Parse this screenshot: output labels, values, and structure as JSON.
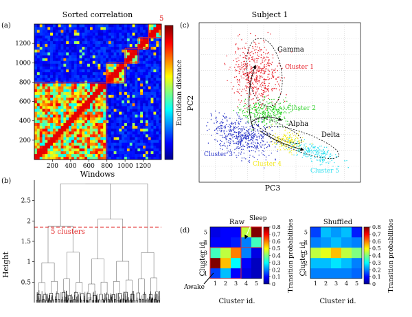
{
  "panel_a": {
    "label": "(a)",
    "title": "Sorted correlation",
    "xlabel": "Windows",
    "colorbar_label": "Euclidean distance",
    "cluster_marker": "5"
  },
  "panel_b": {
    "label": "(b)",
    "ylabel": "Height",
    "threshold_label": "5 clusters"
  },
  "panel_c": {
    "label": "(c)",
    "title": "Subject 1",
    "xlabel": "PC3",
    "ylabel": "PC2",
    "annotations": [
      "Gamma",
      "Alpha",
      "Delta"
    ]
  },
  "panel_d": {
    "label": "(d)",
    "raw_title": "Raw",
    "shuffled_title": "Shuffled",
    "xlabel": "Cluster id.",
    "ylabel": "Cluster id.",
    "colorbar_label": "Transition probabilities",
    "sleep_label": "Sleep",
    "awake_label": "Awake"
  },
  "colors": {
    "cluster1": "#e8202a",
    "cluster2": "#2fd12a",
    "cluster3": "#2a36c8",
    "cluster4": "#f2e81c",
    "cluster5": "#33e0f0",
    "threshold": "#e32a2a"
  },
  "chart_data": [
    {
      "type": "heatmap",
      "panel": "a",
      "title": "Sorted correlation",
      "xlabel": "Windows",
      "ylabel": "",
      "xlim": [
        0,
        1400
      ],
      "ylim": [
        0,
        1400
      ],
      "xticks": [
        200,
        400,
        600,
        800,
        1000,
        1200
      ],
      "yticks": [
        200,
        400,
        600,
        800,
        1000,
        1200
      ],
      "cluster_blocks": [
        [
          0,
          800
        ],
        [
          800,
          1000
        ],
        [
          1000,
          1150
        ],
        [
          1150,
          1260
        ],
        [
          1260,
          1400
        ]
      ],
      "colorbar_label": "Euclidean distance"
    },
    {
      "type": "dendrogram",
      "panel": "b",
      "ylabel": "Height",
      "yticks": [
        0.5,
        1.0,
        1.5,
        2.0,
        2.5
      ],
      "ytick_labels": [
        "0.5",
        "1",
        "1.5",
        "2",
        "2.5"
      ],
      "ylim": [
        0,
        3.0
      ],
      "threshold": 1.85,
      "threshold_label": "5 clusters"
    },
    {
      "type": "scatter",
      "panel": "c",
      "title": "Subject 1",
      "xlabel": "PC3",
      "ylabel": "PC2",
      "series": [
        {
          "name": "Cluster 1",
          "color": "#e8202a"
        },
        {
          "name": "Cluster 2",
          "color": "#2fd12a"
        },
        {
          "name": "Cluster 3",
          "color": "#2a36c8"
        },
        {
          "name": "Cluster 4",
          "color": "#f2e81c"
        },
        {
          "name": "Cluster 5",
          "color": "#33e0f0"
        }
      ],
      "annotations": [
        "Gamma",
        "Alpha",
        "Delta"
      ]
    },
    {
      "type": "heatmap",
      "panel": "d-raw",
      "title": "Raw",
      "xlabel": "Cluster id.",
      "ylabel": "Cluster id.",
      "categories": [
        "1",
        "2",
        "3",
        "4",
        "5"
      ],
      "values": [
        [
          0.15,
          0.25,
          0.1,
          0.08,
          0.05
        ],
        [
          0.8,
          0.55,
          0.3,
          0.1,
          0.05
        ],
        [
          0.35,
          0.45,
          0.6,
          0.2,
          0.08
        ],
        [
          0.1,
          0.1,
          0.12,
          0.2,
          0.35
        ],
        [
          0.08,
          0.1,
          0.1,
          0.45,
          0.8
        ]
      ],
      "clim": [
        0,
        0.8
      ],
      "colorbar_ticks": [
        "0",
        "0.1",
        "0.2",
        "0.3",
        "0.4",
        "0.5",
        "0.6",
        "0.7",
        "0.8"
      ],
      "colorbar_label": "Transition probabilities"
    },
    {
      "type": "heatmap",
      "panel": "d-shuffled",
      "title": "Shuffled",
      "xlabel": "Cluster id.",
      "ylabel": "Cluster id.",
      "categories": [
        "1",
        "2",
        "3",
        "4",
        "5"
      ],
      "values": [
        [
          0.2,
          0.2,
          0.2,
          0.2,
          0.18
        ],
        [
          0.25,
          0.25,
          0.28,
          0.25,
          0.2
        ],
        [
          0.45,
          0.48,
          0.55,
          0.45,
          0.4
        ],
        [
          0.2,
          0.22,
          0.25,
          0.22,
          0.2
        ],
        [
          0.15,
          0.25,
          0.22,
          0.25,
          0.12
        ]
      ],
      "clim": [
        0,
        0.8
      ],
      "colorbar_ticks": [
        "0",
        "0.1",
        "0.2",
        "0.3",
        "0.4",
        "0.5",
        "0.6",
        "0.7",
        "0.8"
      ],
      "colorbar_label": "Transition probabilities"
    }
  ]
}
